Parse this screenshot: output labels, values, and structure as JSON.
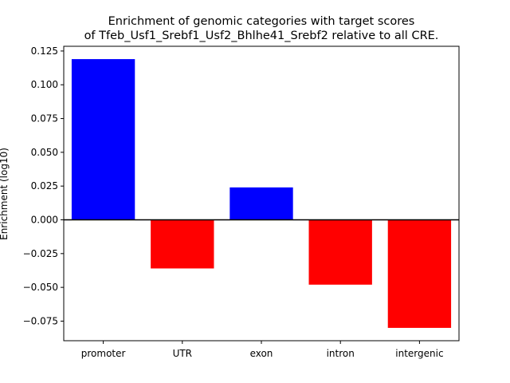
{
  "chart_data": {
    "type": "bar",
    "title_lines": [
      "Enrichment of genomic categories with target scores",
      "of Tfeb_Usf1_Srebf1_Usf2_Bhlhe41_Srebf2 relative to all CRE."
    ],
    "xlabel": "",
    "ylabel": "Enrichment (log10)",
    "categories": [
      "promoter",
      "UTR",
      "exon",
      "intron",
      "intergenic"
    ],
    "values": [
      0.119,
      -0.036,
      0.024,
      -0.048,
      -0.08
    ],
    "colors": {
      "positive": "#0000ff",
      "negative": "#ff0000"
    },
    "ylim": [
      -0.0895,
      0.1285
    ],
    "yticks": [
      0.125,
      0.1,
      0.075,
      0.05,
      0.025,
      0.0,
      -0.025,
      -0.05,
      -0.075
    ],
    "ytick_labels": [
      "0.125",
      "0.100",
      "0.075",
      "0.050",
      "0.025",
      "0.000",
      "−0.025",
      "−0.050",
      "−0.075"
    ],
    "grid": false,
    "legend": "none",
    "zero_line": true
  }
}
